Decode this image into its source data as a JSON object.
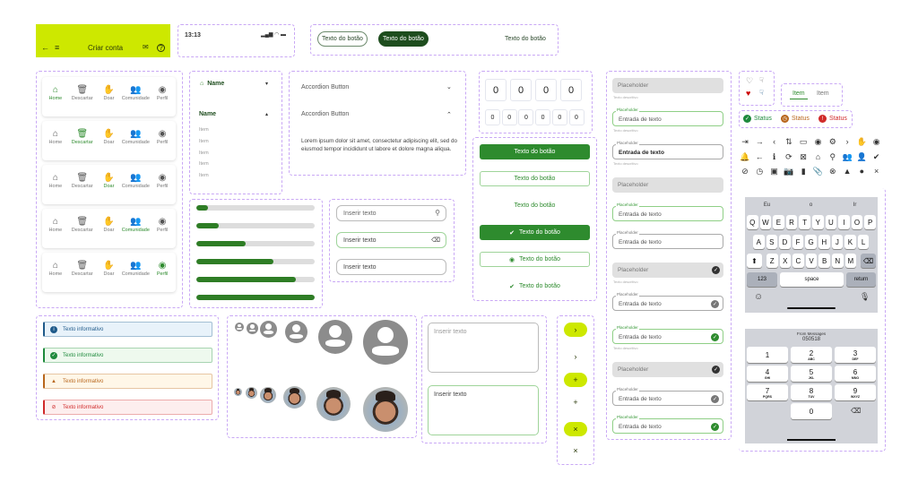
{
  "appbar": {
    "title": "Criar conta",
    "bg": "#cde800",
    "icons": [
      "arrow-left-icon",
      "menu-icon",
      "mail-icon",
      "help-icon"
    ]
  },
  "statusbar": {
    "time": "13:13"
  },
  "pill_buttons": {
    "outline": "Texto do botão",
    "filled": "Texto do botão",
    "text": "Texto do botão",
    "dark": "#1e4d1e"
  },
  "bottom_nav": {
    "items": [
      "Home",
      "Descartar",
      "Doar",
      "Comunidade",
      "Perfil"
    ],
    "active_per_row": [
      0,
      1,
      2,
      3,
      4
    ]
  },
  "dropdown": {
    "closed_label": "Name",
    "open_label": "Name",
    "items": [
      "Item",
      "Item",
      "Item",
      "Item",
      "Item"
    ]
  },
  "accordion": {
    "items": [
      {
        "label": "Accordion Button",
        "expanded": false
      },
      {
        "label": "Accordion Button",
        "expanded": true,
        "content": "Lorem ipsum dolor sit amet, consectetur adipiscing elit, sed do eiusmod tempor incididunt ut labore et dolore magna aliqua."
      }
    ]
  },
  "progress": {
    "values": [
      0.1,
      0.19,
      0.42,
      0.65,
      0.84,
      1.0
    ],
    "color": "#2e7d25"
  },
  "inputs": [
    {
      "placeholder": "Inserir texto",
      "icon": "search-icon"
    },
    {
      "placeholder": "Inserir texto",
      "icon": "clear-icon"
    },
    {
      "placeholder": "Inserir texto"
    }
  ],
  "otp": {
    "large": [
      "0",
      "0",
      "0",
      "0"
    ],
    "small": [
      "0",
      "0",
      "0",
      "0",
      "0",
      "0"
    ]
  },
  "column_buttons": [
    "Texto do botão",
    "Texto do botão",
    "Texto do botão",
    "Texto do botão",
    "Texto do botão",
    "Texto do botão"
  ],
  "text_fields": {
    "placeholder": "Placeholder",
    "value": "Entrada de texto",
    "helper": "Texto descritivo"
  },
  "reactions": {
    "icons": [
      "heart-outline-icon",
      "thumb-down-outline-icon",
      "heart-filled-icon",
      "thumb-down-filled-icon"
    ]
  },
  "tabs": [
    "Item",
    "Item"
  ],
  "statuses": [
    {
      "label": "Status",
      "color": "#1e8a3c"
    },
    {
      "label": "Status",
      "color": "#b8661c"
    },
    {
      "label": "Status",
      "color": "#d02a2a"
    }
  ],
  "icon_grid": [
    [
      "login-icon",
      "arrow-right-icon",
      "chevron-left-icon",
      "sort-icon",
      "chat-icon",
      "user-circle-icon",
      "settings-icon",
      "chevron-right-icon",
      "donate-icon",
      "eye-icon"
    ],
    [
      "bell-icon",
      "arrow-left-icon",
      "info-icon",
      "refresh-icon",
      "delete-icon",
      "home-icon",
      "search-icon",
      "community-icon",
      "person-icon",
      "check-circle-icon"
    ],
    [
      "block-icon",
      "clock-icon",
      "save-icon",
      "add-photo-icon",
      "battery-icon",
      "attach-icon",
      "cancel-icon",
      "warning-icon",
      "error-icon",
      "close-icon"
    ]
  ],
  "keyboard": {
    "suggestions": [
      "Eu",
      "o",
      "Ir"
    ],
    "rows": [
      [
        "Q",
        "W",
        "E",
        "R",
        "T",
        "Y",
        "U",
        "I",
        "O",
        "P"
      ],
      [
        "A",
        "S",
        "D",
        "F",
        "G",
        "H",
        "J",
        "K",
        "L"
      ],
      [
        "Z",
        "X",
        "C",
        "V",
        "B",
        "N",
        "M"
      ]
    ],
    "num_key": "123",
    "space": "space",
    "return": "return"
  },
  "numpad": {
    "banner_title": "From Messages",
    "banner_code": "050518",
    "keys": [
      [
        "1",
        ""
      ],
      [
        "2",
        "ABC"
      ],
      [
        "3",
        "DEF"
      ],
      [
        "4",
        "GHI"
      ],
      [
        "5",
        "JKL"
      ],
      [
        "6",
        "MNO"
      ],
      [
        "7",
        "PQRS"
      ],
      [
        "8",
        "TUV"
      ],
      [
        "9",
        "WXYZ"
      ],
      [
        "0",
        ""
      ]
    ]
  },
  "alerts": [
    {
      "text": "Texto informativo",
      "type": "info",
      "color": "#1f5a8a",
      "bg": "#e8f2fa"
    },
    {
      "text": "Texto informativo",
      "type": "success",
      "color": "#1e8a3c",
      "bg": "#eef9ee"
    },
    {
      "text": "Texto informativo",
      "type": "warning",
      "color": "#b8661c",
      "bg": "#fff7e8"
    },
    {
      "text": "Texto informativo",
      "type": "error",
      "color": "#d02a2a",
      "bg": "#fdeeee"
    }
  ],
  "textareas": [
    {
      "placeholder": "Inserir texto"
    },
    {
      "value": "Inserir texto"
    }
  ],
  "fab": {
    "color": "#cde800",
    "icons": [
      "chevron-right-icon",
      "chevron-right-icon",
      "plus-icon",
      "plus-icon",
      "close-icon",
      "close-icon"
    ]
  }
}
